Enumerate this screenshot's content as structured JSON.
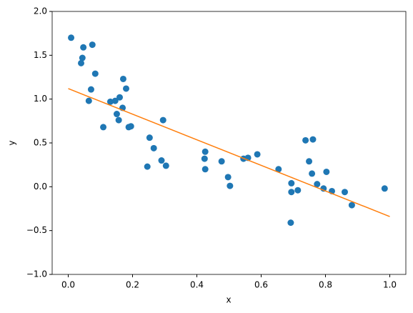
{
  "chart_data": {
    "type": "scatter",
    "xlabel": "x",
    "ylabel": "y",
    "xlim": [
      -0.05,
      1.05
    ],
    "ylim": [
      -1.0,
      2.0
    ],
    "xticks": [
      {
        "value": 0,
        "label": "0.0"
      },
      {
        "value": 0.2,
        "label": "0.2"
      },
      {
        "value": 0.4,
        "label": "0.4"
      },
      {
        "value": 0.6,
        "label": "0.6"
      },
      {
        "value": 0.8,
        "label": "0.8"
      },
      {
        "value": 1.0,
        "label": "1.0"
      }
    ],
    "yticks": [
      {
        "value": -1.0,
        "label": "−1.0"
      },
      {
        "value": -0.5,
        "label": "−0.5"
      },
      {
        "value": 0,
        "label": "0.0"
      },
      {
        "value": 0.5,
        "label": "0.5"
      },
      {
        "value": 1.0,
        "label": "1.0"
      },
      {
        "value": 1.5,
        "label": "1.5"
      },
      {
        "value": 2.0,
        "label": "2.0"
      }
    ],
    "series": [
      {
        "style": "points",
        "color": "#1f77b4",
        "x": [
          0.009,
          0.044,
          0.047,
          0.04,
          0.075,
          0.084,
          0.071,
          0.064,
          0.109,
          0.131,
          0.146,
          0.16,
          0.171,
          0.18,
          0.169,
          0.151,
          0.157,
          0.188,
          0.195,
          0.295,
          0.253,
          0.266,
          0.29,
          0.304,
          0.246,
          0.426,
          0.424,
          0.426,
          0.477,
          0.497,
          0.503,
          0.545,
          0.559,
          0.588,
          0.654,
          0.694,
          0.694,
          0.714,
          0.692,
          0.738,
          0.761,
          0.749,
          0.758,
          0.774,
          0.803,
          0.794,
          0.82,
          0.86,
          0.882,
          0.984
        ],
        "values": [
          1.7,
          1.47,
          1.59,
          1.41,
          1.62,
          1.29,
          1.11,
          0.98,
          0.68,
          0.97,
          0.98,
          1.02,
          1.23,
          1.12,
          0.9,
          0.83,
          0.76,
          0.68,
          0.69,
          0.76,
          0.56,
          0.44,
          0.3,
          0.24,
          0.23,
          0.4,
          0.32,
          0.2,
          0.29,
          0.11,
          0.01,
          0.32,
          0.33,
          0.37,
          0.2,
          0.04,
          -0.06,
          -0.04,
          -0.41,
          0.53,
          0.54,
          0.29,
          0.15,
          0.03,
          0.17,
          -0.02,
          -0.05,
          -0.06,
          -0.21,
          -0.02
        ]
      },
      {
        "style": "line",
        "color": "#ff7f0e",
        "x": [
          0,
          1.0
        ],
        "values": [
          1.12,
          -0.34
        ]
      }
    ]
  }
}
